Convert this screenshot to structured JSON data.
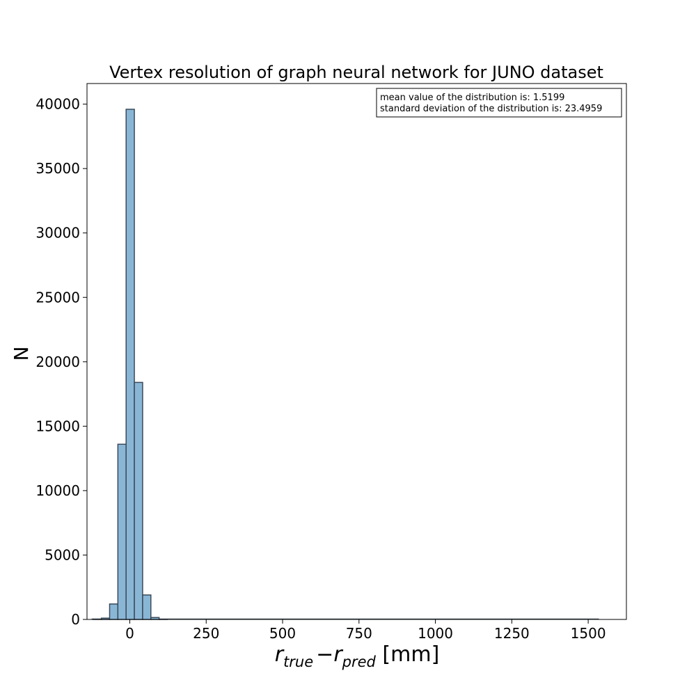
{
  "chart_data": {
    "type": "bar",
    "title": "Vertex resolution of graph neural network for JUNO dataset",
    "ylabel": "N",
    "xlabel_parts": {
      "r1": "r",
      "sub1": "true",
      "minus": "−",
      "r2": "r",
      "sub2": "pred",
      "unit": " [mm]"
    },
    "xlim": [
      -140,
      1625
    ],
    "ylim": [
      0,
      41600
    ],
    "x_ticks": [
      0,
      250,
      500,
      750,
      1000,
      1250,
      1500
    ],
    "x_tick_labels": [
      "0",
      "250",
      "500",
      "750",
      "1000",
      "1250",
      "1500"
    ],
    "y_ticks": [
      0,
      5000,
      10000,
      15000,
      20000,
      25000,
      30000,
      35000,
      40000
    ],
    "y_tick_labels": [
      "0",
      "5000",
      "10000",
      "15000",
      "20000",
      "25000",
      "30000",
      "35000",
      "40000"
    ],
    "bins": [
      {
        "x0": -120,
        "x1": -93,
        "value": 20
      },
      {
        "x0": -93,
        "x1": -66,
        "value": 100
      },
      {
        "x0": -66,
        "x1": -39,
        "value": 1200
      },
      {
        "x0": -39,
        "x1": -12,
        "value": 13600
      },
      {
        "x0": -12,
        "x1": 15,
        "value": 39600
      },
      {
        "x0": 15,
        "x1": 42,
        "value": 18400
      },
      {
        "x0": 42,
        "x1": 69,
        "value": 1900
      },
      {
        "x0": 69,
        "x1": 96,
        "value": 150
      },
      {
        "x0": 96,
        "x1": 123,
        "value": 10
      }
    ],
    "baseline_range": [
      -125,
      1535
    ],
    "bar_color": "#8ab6d6",
    "bar_edge_color": "#3a4a58",
    "grid": false,
    "legend_position": "top-right",
    "annotations": [
      "mean value of the distribution is: 1.5199",
      "standard deviation of the distribution is: 23.4959"
    ]
  }
}
